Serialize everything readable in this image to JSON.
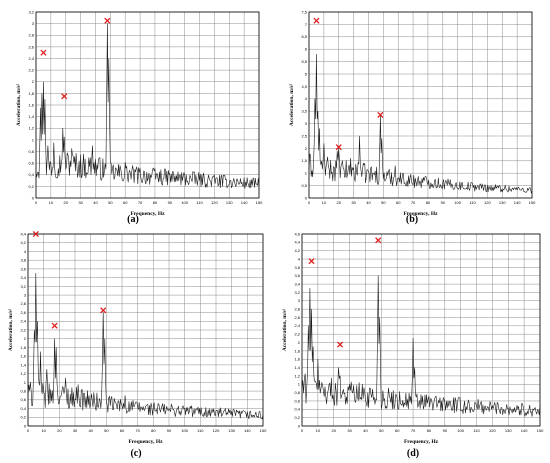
{
  "captions": {
    "a": "(a)",
    "b": "(b)",
    "c": "(c)",
    "d": "(d)"
  },
  "colors": {
    "trace": "#1a1a1a",
    "grid": "#8c8c8c",
    "marker": "#e02020",
    "axis": "#000000"
  },
  "chart_data": [
    {
      "id": "a",
      "type": "line",
      "xlabel": "Frequency, Hz",
      "ylabel": "Acceleration, m/s²",
      "xlim": [
        0,
        150
      ],
      "ylim": [
        0,
        3.2
      ],
      "xticks": [
        0,
        10,
        20,
        30,
        40,
        50,
        60,
        70,
        80,
        90,
        100,
        110,
        120,
        130,
        140,
        150
      ],
      "yticks": [
        0,
        0.2,
        0.4,
        0.6,
        0.8,
        1,
        1.2,
        1.4,
        1.6,
        1.8,
        2,
        2.2,
        2.4,
        2.6,
        2.8,
        3,
        3.2
      ],
      "ytick_labels": [
        "0",
        "0,2",
        "0,4",
        "0,6",
        "0,8",
        "1",
        "1,2",
        "1,4",
        "1,6",
        "1,8",
        "2",
        "2,2",
        "2,4",
        "2,6",
        "2,8",
        "3",
        "3,2"
      ],
      "grid": true,
      "baseline": [
        [
          0,
          0.6
        ],
        [
          10,
          0.6
        ],
        [
          20,
          0.65
        ],
        [
          30,
          0.6
        ],
        [
          40,
          0.58
        ],
        [
          50,
          0.48
        ],
        [
          60,
          0.45
        ],
        [
          70,
          0.42
        ],
        [
          80,
          0.4
        ],
        [
          90,
          0.38
        ],
        [
          100,
          0.36
        ],
        [
          110,
          0.34
        ],
        [
          120,
          0.32
        ],
        [
          130,
          0.3
        ],
        [
          140,
          0.28
        ],
        [
          150,
          0.26
        ]
      ],
      "peaks": [
        [
          3,
          1.55
        ],
        [
          4,
          1.8
        ],
        [
          5,
          2.0
        ],
        [
          6,
          1.7
        ],
        [
          8,
          0.9
        ],
        [
          12,
          0.95
        ],
        [
          18,
          1.2
        ],
        [
          19,
          1.05
        ],
        [
          24,
          0.85
        ],
        [
          38,
          0.9
        ],
        [
          48,
          3.0
        ],
        [
          49,
          2.4
        ],
        [
          60,
          0.62
        ],
        [
          90,
          0.42
        ]
      ],
      "markers": [
        {
          "x": 5,
          "y": 2.5
        },
        {
          "x": 19,
          "y": 1.75
        },
        {
          "x": 48,
          "y": 3.05
        }
      ]
    },
    {
      "id": "b",
      "type": "line",
      "xlabel": "Frequency, Hz",
      "ylabel": "Acceleration, m/s²",
      "xlim": [
        0,
        150
      ],
      "ylim": [
        0,
        7.5
      ],
      "xticks": [
        0,
        10,
        20,
        30,
        40,
        50,
        60,
        70,
        80,
        90,
        100,
        110,
        120,
        130,
        140,
        150
      ],
      "yticks": [
        0,
        0.5,
        1,
        1.5,
        2,
        2.5,
        3,
        3.5,
        4,
        4.5,
        5,
        5.5,
        6,
        6.5,
        7,
        7.5
      ],
      "ytick_labels": [
        "0",
        "0,5",
        "1",
        "1,5",
        "2",
        "2,5",
        "3",
        "3,5",
        "4",
        "4,5",
        "5",
        "5,5",
        "6",
        "6,5",
        "7",
        "7,5"
      ],
      "grid": true,
      "baseline": [
        [
          0,
          1.4
        ],
        [
          10,
          1.3
        ],
        [
          20,
          1.2
        ],
        [
          30,
          1.15
        ],
        [
          40,
          1.05
        ],
        [
          50,
          0.95
        ],
        [
          60,
          0.85
        ],
        [
          70,
          0.75
        ],
        [
          80,
          0.7
        ],
        [
          90,
          0.62
        ],
        [
          100,
          0.55
        ],
        [
          110,
          0.5
        ],
        [
          120,
          0.45
        ],
        [
          130,
          0.42
        ],
        [
          140,
          0.38
        ],
        [
          150,
          0.35
        ]
      ],
      "peaks": [
        [
          4,
          4.0
        ],
        [
          5,
          5.8
        ],
        [
          6,
          3.5
        ],
        [
          7,
          2.8
        ],
        [
          10,
          2.2
        ],
        [
          19,
          1.9
        ],
        [
          20,
          2.0
        ],
        [
          28,
          1.6
        ],
        [
          34,
          2.5
        ],
        [
          48,
          3.3
        ],
        [
          49,
          2.4
        ],
        [
          58,
          1.3
        ]
      ],
      "markers": [
        {
          "x": 5,
          "y": 7.15
        },
        {
          "x": 20,
          "y": 2.05
        },
        {
          "x": 48,
          "y": 3.35
        }
      ]
    },
    {
      "id": "c",
      "type": "line",
      "xlabel": "Frequency, Hz",
      "ylabel": "Acceleration, m/s²",
      "xlim": [
        0,
        150
      ],
      "ylim": [
        0,
        4.4
      ],
      "xticks": [
        0,
        10,
        20,
        30,
        40,
        50,
        60,
        70,
        80,
        90,
        100,
        110,
        120,
        130,
        140,
        150
      ],
      "yticks": [
        0,
        0.2,
        0.4,
        0.6,
        0.8,
        1,
        1.2,
        1.4,
        1.6,
        1.8,
        2,
        2.2,
        2.4,
        2.6,
        2.8,
        3,
        3.2,
        3.4,
        3.6,
        3.8,
        4,
        4.2,
        4.4
      ],
      "ytick_labels": [
        "0",
        "0,2",
        "0,4",
        "0,6",
        "0,8",
        "1",
        "1,2",
        "1,4",
        "1,6",
        "1,8",
        "2",
        "2,2",
        "2,4",
        "2,6",
        "2,8",
        "3",
        "3,2",
        "3,4",
        "3,6",
        "3,8",
        "4",
        "4,2",
        "4,4"
      ],
      "grid": true,
      "baseline": [
        [
          0,
          0.8
        ],
        [
          10,
          0.75
        ],
        [
          20,
          0.75
        ],
        [
          30,
          0.7
        ],
        [
          40,
          0.62
        ],
        [
          50,
          0.55
        ],
        [
          60,
          0.5
        ],
        [
          70,
          0.45
        ],
        [
          80,
          0.42
        ],
        [
          90,
          0.4
        ],
        [
          100,
          0.38
        ],
        [
          110,
          0.35
        ],
        [
          120,
          0.33
        ],
        [
          130,
          0.3
        ],
        [
          140,
          0.28
        ],
        [
          150,
          0.26
        ]
      ],
      "peaks": [
        [
          4,
          2.2
        ],
        [
          5,
          3.5
        ],
        [
          6,
          2.4
        ],
        [
          8,
          1.7
        ],
        [
          12,
          1.3
        ],
        [
          17,
          2.0
        ],
        [
          18,
          1.8
        ],
        [
          24,
          1.1
        ],
        [
          32,
          0.95
        ],
        [
          48,
          2.6
        ],
        [
          49,
          2.0
        ],
        [
          62,
          0.7
        ]
      ],
      "markers": [
        {
          "x": 5,
          "y": 4.4
        },
        {
          "x": 17,
          "y": 2.3
        },
        {
          "x": 48,
          "y": 2.65
        }
      ]
    },
    {
      "id": "d",
      "type": "line",
      "xlabel": "Frequency, Hz",
      "ylabel": "Acceleration, m/s²",
      "xlim": [
        0,
        150
      ],
      "ylim": [
        0,
        4.6
      ],
      "xticks": [
        0,
        10,
        20,
        30,
        40,
        50,
        60,
        70,
        80,
        90,
        100,
        110,
        120,
        130,
        140,
        150
      ],
      "yticks": [
        0,
        0.2,
        0.4,
        0.6,
        0.8,
        1,
        1.2,
        1.4,
        1.6,
        1.8,
        2,
        2.2,
        2.4,
        2.6,
        2.8,
        3,
        3.2,
        3.4,
        3.6,
        3.8,
        4,
        4.2,
        4.4,
        4.6
      ],
      "ytick_labels": [
        "0",
        "0,2",
        "0,4",
        "0,6",
        "0,8",
        "1",
        "1,2",
        "1,4",
        "1,6",
        "1,8",
        "2",
        "2,2",
        "2,4",
        "2,6",
        "2,8",
        "3",
        "3,2",
        "3,4",
        "3,6",
        "3,8",
        "4",
        "4,2",
        "4,4",
        "4,6"
      ],
      "grid": true,
      "baseline": [
        [
          0,
          1.0
        ],
        [
          10,
          0.95
        ],
        [
          20,
          0.9
        ],
        [
          30,
          0.85
        ],
        [
          40,
          0.8
        ],
        [
          50,
          0.72
        ],
        [
          60,
          0.68
        ],
        [
          70,
          0.64
        ],
        [
          80,
          0.6
        ],
        [
          90,
          0.56
        ],
        [
          100,
          0.52
        ],
        [
          110,
          0.5
        ],
        [
          120,
          0.48
        ],
        [
          130,
          0.45
        ],
        [
          140,
          0.42
        ],
        [
          150,
          0.4
        ]
      ],
      "peaks": [
        [
          4,
          2.4
        ],
        [
          5,
          3.3
        ],
        [
          6,
          2.8
        ],
        [
          7,
          1.9
        ],
        [
          10,
          1.6
        ],
        [
          23,
          1.4
        ],
        [
          24,
          1.2
        ],
        [
          30,
          1.0
        ],
        [
          48,
          3.6
        ],
        [
          49,
          2.6
        ],
        [
          70,
          2.1
        ],
        [
          71,
          1.4
        ]
      ],
      "markers": [
        {
          "x": 6,
          "y": 3.95
        },
        {
          "x": 24,
          "y": 1.95
        },
        {
          "x": 48,
          "y": 4.45
        }
      ]
    }
  ]
}
